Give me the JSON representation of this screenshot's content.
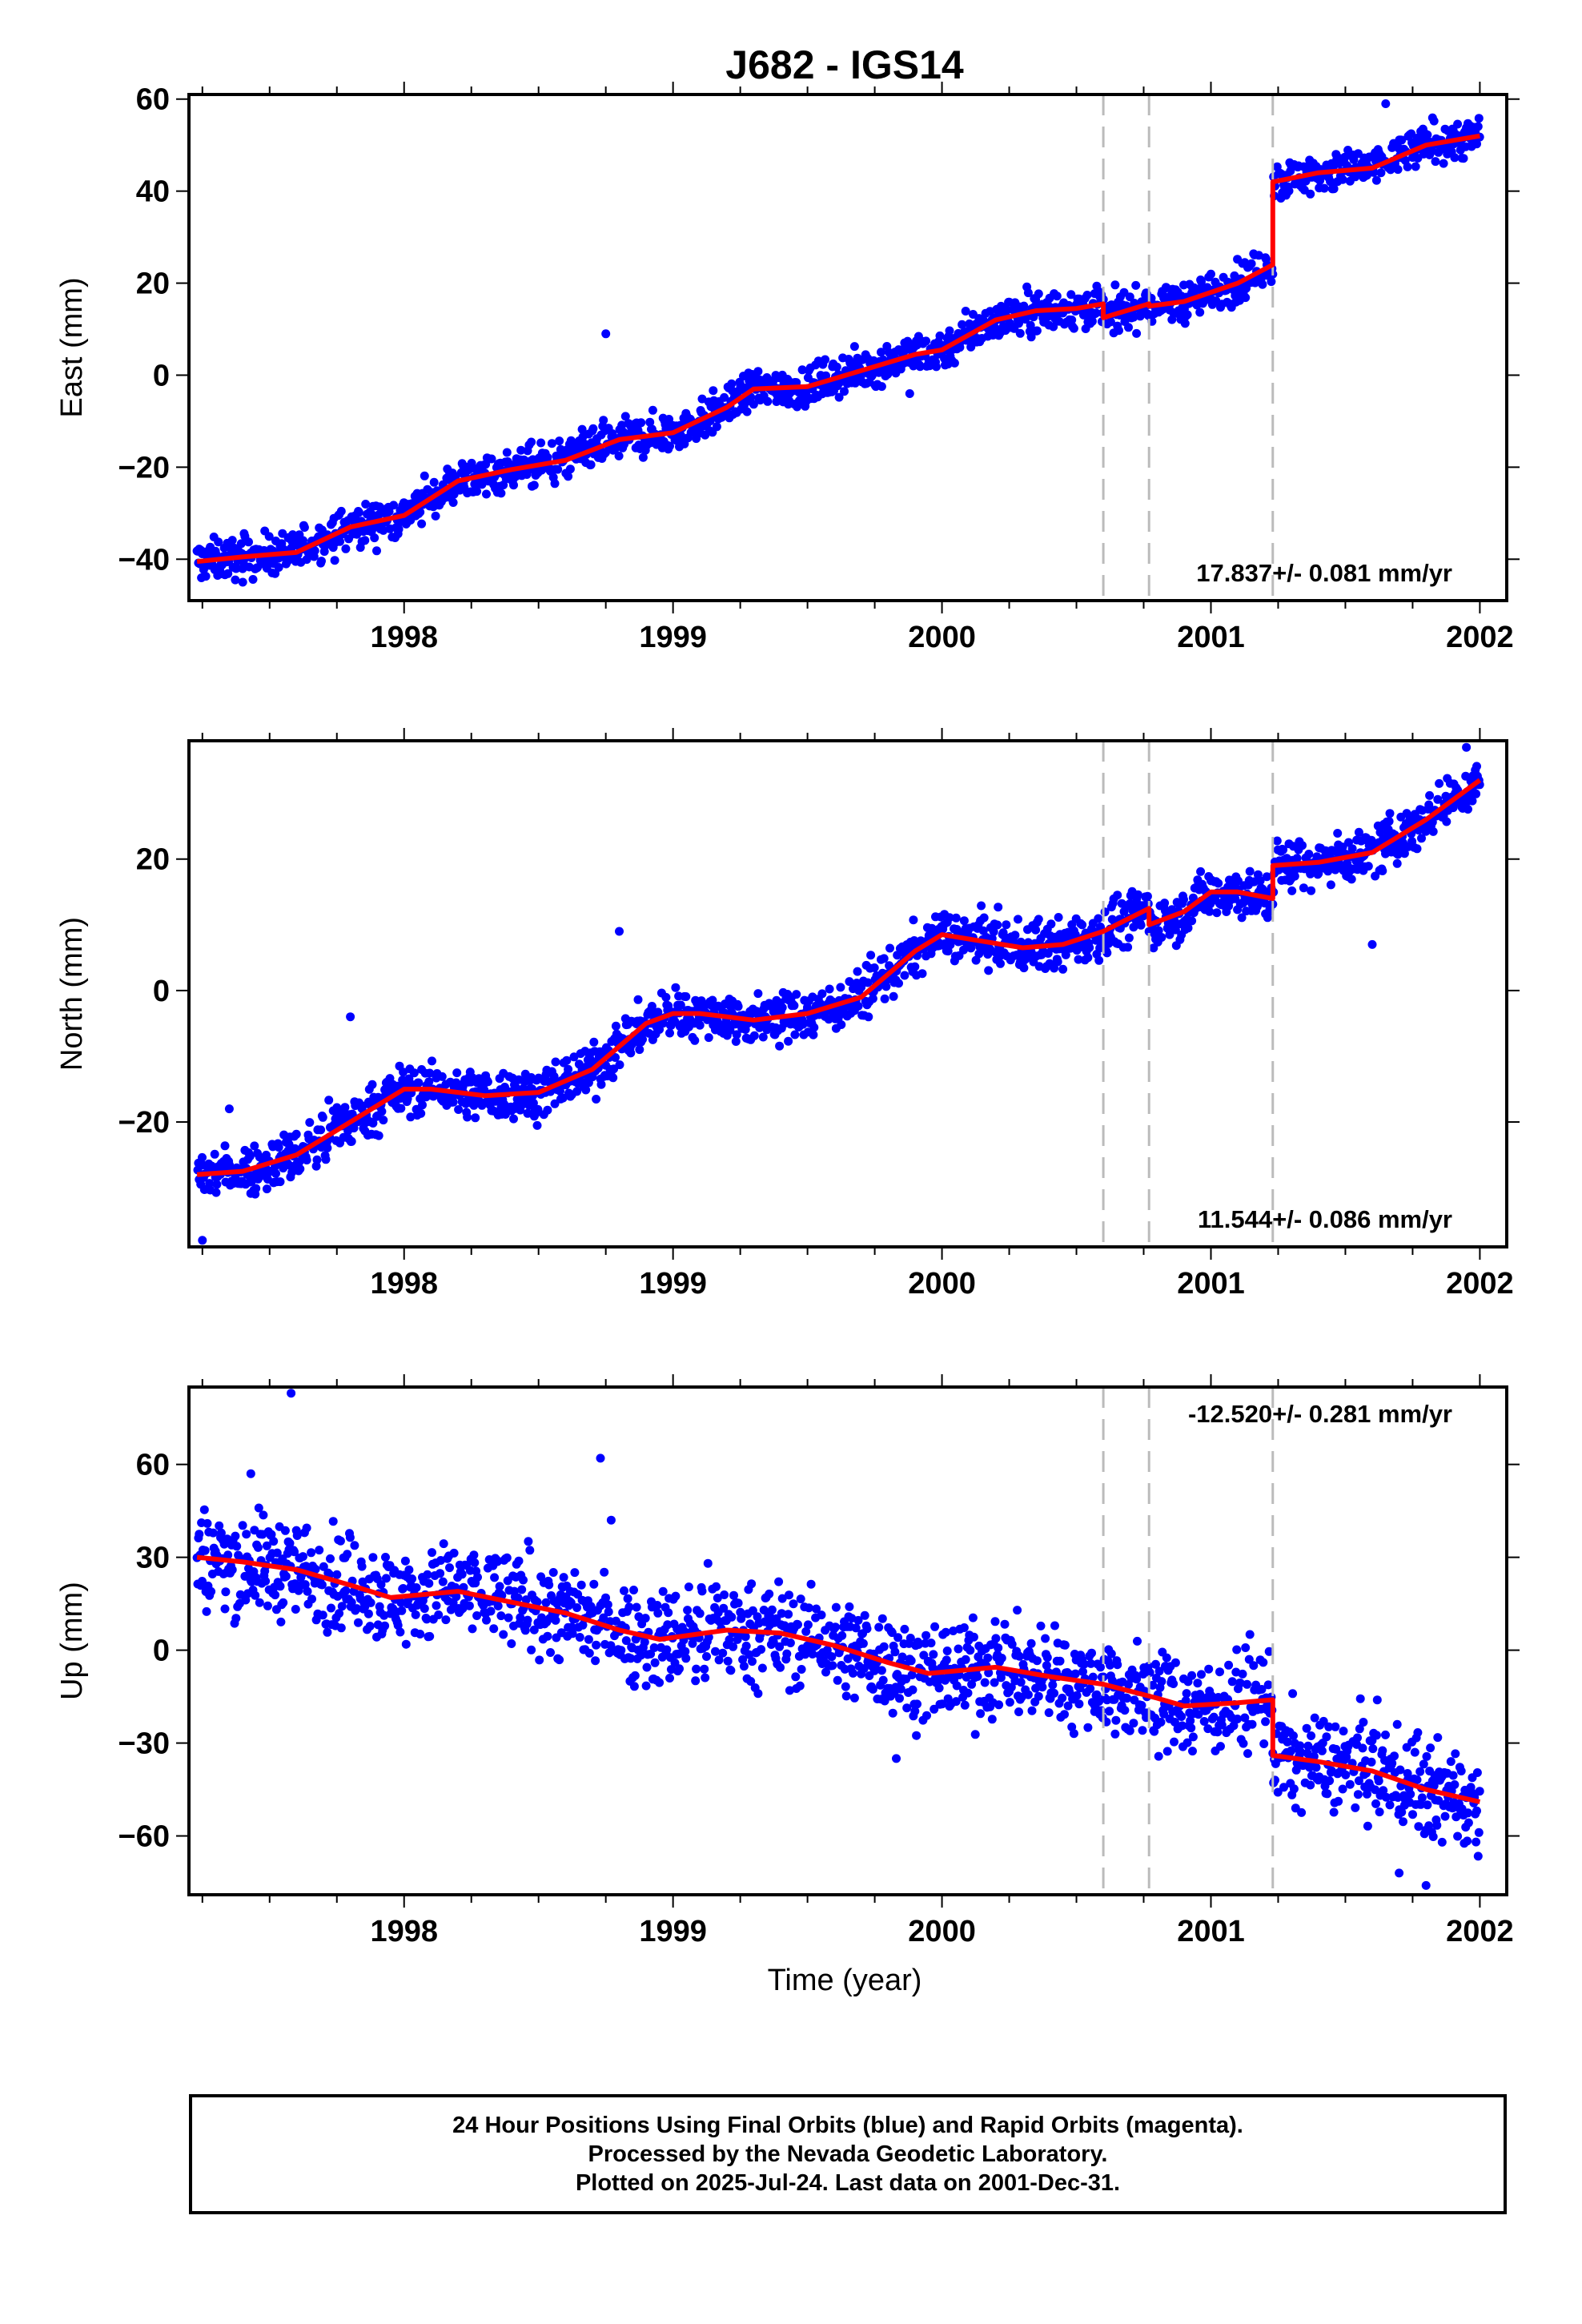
{
  "chart_data": {
    "type": "scatter",
    "title": "J682 - IGS14",
    "xlabel": "Time (year)",
    "xlim": [
      1997.2,
      2002.1
    ],
    "xticks": [
      1998,
      1999,
      2000,
      2001,
      2002
    ],
    "x_range_data": [
      1997.23,
      2002.0
    ],
    "event_lines": [
      2000.6,
      2000.77,
      2001.23
    ],
    "colors": {
      "points": "#0000ff",
      "model": "#ff0000",
      "event_line": "#bbbbbb"
    },
    "panels": [
      {
        "name": "east",
        "ylabel": "East (mm)",
        "ylim": [
          -49,
          61
        ],
        "yticks": [
          -40,
          -20,
          0,
          20,
          40,
          60
        ],
        "ytick_labels": [
          "−40",
          "−20",
          "0",
          "20",
          "40",
          "60"
        ],
        "rate_label": "17.837+/- 0.081 mm/yr",
        "noise": 2.2,
        "model": {
          "x": [
            1997.23,
            1997.4,
            1997.6,
            1997.8,
            1998.0,
            1998.2,
            1998.4,
            1998.6,
            1998.8,
            1999.0,
            1999.2,
            1999.3,
            1999.5,
            1999.7,
            1999.9,
            2000.0,
            2000.2,
            2000.35,
            2000.5,
            2000.6,
            2000.6,
            2000.77,
            2000.77,
            2000.9,
            2001.1,
            2001.23,
            2001.23,
            2001.4,
            2001.6,
            2001.8,
            2002.0
          ],
          "y": [
            -40.5,
            -39.5,
            -38.5,
            -33.0,
            -30.5,
            -23.0,
            -20.5,
            -18.5,
            -14.0,
            -12.5,
            -7.0,
            -3.0,
            -2.5,
            1.0,
            4.5,
            5.5,
            12.0,
            14.0,
            14.5,
            15.5,
            12.5,
            15.5,
            15.0,
            16.0,
            20.0,
            24.0,
            42.0,
            44.0,
            45.0,
            50.0,
            52.0
          ]
        },
        "outliers": [
          [
            2001.65,
            59
          ],
          [
            1998.75,
            9
          ],
          [
            1999.88,
            -4
          ],
          [
            1997.4,
            -45
          ]
        ]
      },
      {
        "name": "north",
        "ylabel": "North (mm)",
        "ylim": [
          -39,
          38
        ],
        "yticks": [
          -20,
          0,
          20
        ],
        "ytick_labels": [
          "−20",
          "0",
          "20"
        ],
        "rate_label": "11.544+/- 0.086 mm/yr",
        "noise": 1.9,
        "model": {
          "x": [
            1997.23,
            1997.4,
            1997.6,
            1997.8,
            1998.0,
            1998.1,
            1998.3,
            1998.5,
            1998.7,
            1998.9,
            1999.0,
            1999.1,
            1999.3,
            1999.5,
            1999.7,
            1999.9,
            2000.0,
            2000.15,
            2000.3,
            2000.45,
            2000.6,
            2000.77,
            2000.77,
            2000.9,
            2001.0,
            2001.1,
            2001.23,
            2001.23,
            2001.4,
            2001.6,
            2001.8,
            2002.0
          ],
          "y": [
            -28.0,
            -27.5,
            -25.0,
            -20.0,
            -15.0,
            -15.0,
            -16.0,
            -15.5,
            -12.0,
            -5.0,
            -3.5,
            -3.5,
            -4.5,
            -3.5,
            -1.0,
            6.0,
            8.5,
            7.5,
            6.5,
            7.0,
            9.0,
            12.5,
            10.0,
            12.0,
            15.0,
            15.0,
            14.0,
            19.0,
            19.5,
            21.0,
            26.0,
            32.0
          ]
        },
        "outliers": [
          [
            1997.8,
            -4
          ],
          [
            1998.8,
            9
          ],
          [
            1997.35,
            -18
          ],
          [
            2001.6,
            7
          ],
          [
            1997.25,
            -38
          ],
          [
            2001.95,
            37
          ]
        ]
      },
      {
        "name": "up",
        "ylabel": "Up (mm)",
        "ylim": [
          -79,
          85
        ],
        "yticks": [
          -60,
          -30,
          0,
          30,
          60
        ],
        "ytick_labels": [
          "−60",
          "−30",
          "0",
          "30",
          "60"
        ],
        "rate_label": "-12.520+/- 0.281 mm/yr",
        "noise": 8.0,
        "model": {
          "x": [
            1997.23,
            1997.4,
            1997.6,
            1997.8,
            1997.95,
            1998.2,
            1998.4,
            1998.6,
            1998.8,
            1998.95,
            1999.2,
            1999.4,
            1999.6,
            1999.8,
            1999.95,
            2000.2,
            2000.4,
            2000.6,
            2000.8,
            2000.9,
            2001.1,
            2001.23,
            2001.23,
            2001.4,
            2001.6,
            2001.8,
            2002.0
          ],
          "y": [
            30.0,
            28.5,
            26.0,
            21.0,
            17.0,
            19.0,
            15.5,
            12.0,
            6.5,
            3.5,
            6.5,
            5.5,
            1.5,
            -4.0,
            -7.5,
            -5.5,
            -8.5,
            -11.0,
            -15.5,
            -18.0,
            -17.0,
            -16.0,
            -34.0,
            -36.0,
            -39.0,
            -45.0,
            -49.0
          ]
        },
        "outliers": [
          [
            1997.58,
            83
          ],
          [
            1998.73,
            62
          ],
          [
            1997.43,
            57
          ],
          [
            1998.77,
            42
          ],
          [
            2001.8,
            -76
          ],
          [
            2001.7,
            -72
          ],
          [
            1999.83,
            -35
          ]
        ]
      }
    ]
  },
  "footer": {
    "line1": "24 Hour Positions Using Final Orbits (blue) and Rapid Orbits (magenta).",
    "line2": "Processed by the Nevada Geodetic Laboratory.",
    "line3": "Plotted on 2025-Jul-24. Last data on 2001-Dec-31."
  }
}
